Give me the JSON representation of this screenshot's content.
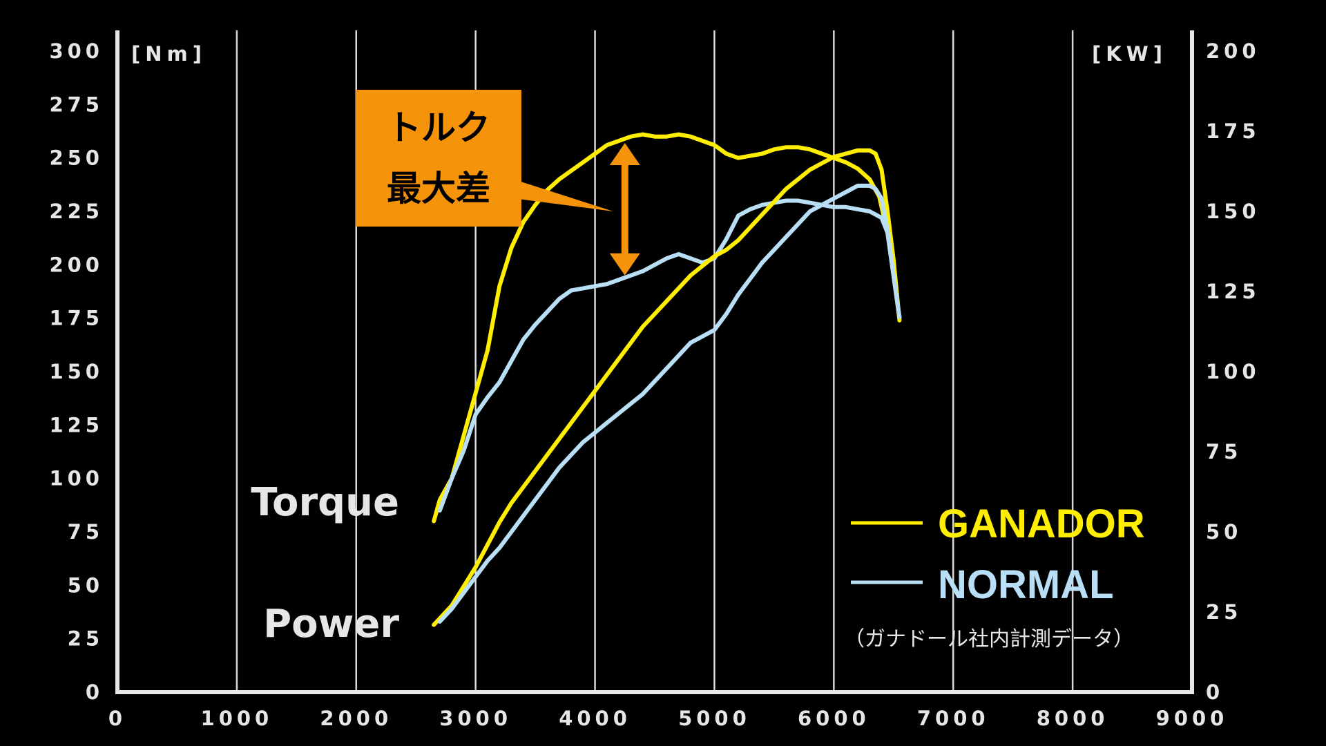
{
  "chart_data": {
    "type": "line",
    "left_unit": "[Nm]",
    "right_unit": "[KW]",
    "xlim": [
      0,
      9000
    ],
    "ylim_left": [
      0,
      300
    ],
    "ylim_right": [
      0,
      200
    ],
    "x_ticks": [
      "0",
      "1000",
      "2000",
      "3000",
      "4000",
      "5000",
      "6000",
      "7000",
      "8000",
      "9000"
    ],
    "y_left_ticks": [
      "0",
      "25",
      "50",
      "75",
      "100",
      "125",
      "150",
      "175",
      "200",
      "225",
      "250",
      "275",
      "300"
    ],
    "y_right_ticks": [
      "0",
      "25",
      "50",
      "75",
      "100",
      "125",
      "150",
      "175",
      "200"
    ],
    "grid": "vertical",
    "curve_labels": {
      "torque": "Torque",
      "power": "Power"
    },
    "annotation": {
      "line1": "トルク",
      "line2": "最大差",
      "rpm": 4250,
      "from_nm": 195,
      "to_nm": 257
    },
    "legend": {
      "position": "bottom-right",
      "ganador": "GANADOR",
      "normal": "NORMAL",
      "note": "（ガナドール社内計測データ）"
    },
    "colors": {
      "ganador": "#ffee00",
      "normal": "#b8dff5",
      "annotation": "#f5940a",
      "axis": "#e6e6e6"
    },
    "series": [
      {
        "name": "GANADOR",
        "metric": "torque",
        "axis": "left",
        "x": [
          2650,
          2700,
          2800,
          2900,
          3000,
          3100,
          3200,
          3300,
          3400,
          3500,
          3600,
          3700,
          3800,
          3900,
          4000,
          4100,
          4200,
          4300,
          4400,
          4500,
          4600,
          4700,
          4800,
          4900,
          5000,
          5100,
          5200,
          5300,
          5400,
          5500,
          5600,
          5700,
          5800,
          5900,
          6000,
          6100,
          6200,
          6300,
          6380,
          6450,
          6500,
          6550
        ],
        "values": [
          80,
          90,
          100,
          120,
          140,
          160,
          190,
          208,
          220,
          228,
          235,
          240,
          244,
          248,
          252,
          256,
          258,
          260,
          261,
          260,
          260,
          261,
          260,
          258,
          256,
          252,
          250,
          251,
          252,
          254,
          255,
          255,
          254,
          252,
          250,
          248,
          245,
          240,
          232,
          215,
          195,
          175
        ]
      },
      {
        "name": "NORMAL",
        "metric": "torque",
        "axis": "left",
        "x": [
          2700,
          2800,
          2900,
          3000,
          3100,
          3200,
          3300,
          3400,
          3500,
          3600,
          3700,
          3800,
          3900,
          4000,
          4100,
          4200,
          4300,
          4400,
          4500,
          4600,
          4700,
          4800,
          4900,
          5000,
          5100,
          5200,
          5300,
          5400,
          5500,
          5600,
          5700,
          5800,
          5900,
          6000,
          6100,
          6200,
          6300,
          6400,
          6450,
          6500,
          6550
        ],
        "values": [
          85,
          100,
          113,
          130,
          138,
          145,
          155,
          165,
          172,
          178,
          184,
          188,
          189,
          190,
          191,
          193,
          195,
          197,
          200,
          203,
          205,
          203,
          201,
          203,
          212,
          223,
          226,
          228,
          229,
          230,
          230,
          229,
          228,
          227,
          227,
          226,
          225,
          222,
          215,
          195,
          175
        ]
      },
      {
        "name": "GANADOR",
        "metric": "power",
        "axis": "right",
        "x": [
          2650,
          2800,
          2900,
          3000,
          3100,
          3200,
          3300,
          3400,
          3500,
          3600,
          3700,
          3800,
          3900,
          4000,
          4100,
          4200,
          4300,
          4400,
          4500,
          4600,
          4700,
          4800,
          4900,
          5000,
          5100,
          5200,
          5300,
          5400,
          5500,
          5600,
          5700,
          5800,
          5900,
          6000,
          6100,
          6200,
          6300,
          6350,
          6400,
          6450,
          6500,
          6550
        ],
        "values": [
          21,
          27,
          33,
          39,
          46,
          53,
          59,
          64,
          69,
          74,
          79,
          84,
          89,
          94,
          99,
          104,
          109,
          114,
          118,
          122,
          126,
          130,
          133,
          136,
          138,
          141,
          145,
          149,
          153,
          157,
          160,
          163,
          165,
          167,
          168,
          169,
          169,
          168,
          163,
          150,
          135,
          116
        ]
      },
      {
        "name": "NORMAL",
        "metric": "power",
        "axis": "right",
        "x": [
          2700,
          2800,
          2900,
          3000,
          3100,
          3200,
          3300,
          3400,
          3500,
          3600,
          3700,
          3800,
          3900,
          4000,
          4100,
          4200,
          4300,
          4400,
          4500,
          4600,
          4700,
          4800,
          4900,
          5000,
          5100,
          5200,
          5300,
          5400,
          5500,
          5600,
          5700,
          5800,
          5900,
          6000,
          6100,
          6200,
          6300,
          6350,
          6400,
          6450,
          6500,
          6550
        ],
        "values": [
          22,
          26,
          31,
          36,
          41,
          45,
          50,
          55,
          60,
          65,
          70,
          74,
          78,
          81,
          84,
          87,
          90,
          93,
          97,
          101,
          105,
          109,
          111,
          113,
          118,
          124,
          129,
          134,
          138,
          142,
          146,
          150,
          152,
          154,
          156,
          158,
          158,
          157,
          154,
          144,
          130,
          117
        ]
      }
    ]
  }
}
